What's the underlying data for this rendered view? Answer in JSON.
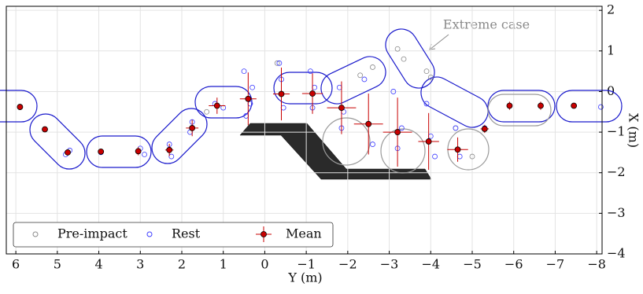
{
  "chart_data": {
    "type": "scatter",
    "xlabel": "Y (m)",
    "ylabel": "X (m)",
    "annotation": "Extreme case",
    "xlim": [
      6.23,
      -8.13
    ],
    "ylim": [
      -4,
      2.1
    ],
    "xticks": [
      6,
      5,
      4,
      3,
      2,
      1,
      0,
      {
        "value": -1,
        "label": "−1"
      },
      {
        "value": -2,
        "label": "−2"
      },
      {
        "value": -3,
        "label": "−3"
      },
      {
        "value": -4,
        "label": "−4"
      },
      {
        "value": -5,
        "label": "−5"
      },
      {
        "value": -6,
        "label": "−6"
      },
      {
        "value": -7,
        "label": "−7"
      },
      {
        "value": -8,
        "label": "−8"
      }
    ],
    "yticks": [
      2,
      1,
      0,
      {
        "value": -1,
        "label": "−1"
      },
      {
        "value": -2,
        "label": "−2"
      },
      {
        "value": -3,
        "label": "−3"
      },
      {
        "value": -4,
        "label": "−4"
      }
    ],
    "grid": true,
    "legend": "lower left",
    "series": [
      {
        "name": "Pre-impact",
        "color": "#8a8a8a",
        "x": [
          -3.2,
          -3.35,
          -3.9,
          -4.0,
          -2.3,
          -2.6,
          -4.6,
          -5.0,
          -0.3,
          1.4
        ],
        "values": [
          1.05,
          0.8,
          0.5,
          0.35,
          0.4,
          0.6,
          -0.9,
          -1.6,
          0.7,
          -0.5
        ]
      },
      {
        "name": "Rest",
        "color": "#3d3dff",
        "x": [
          5.9,
          5.3,
          4.7,
          4.8,
          3.95,
          3.0,
          2.9,
          2.3,
          2.25,
          1.75,
          1.8,
          1.2,
          1.0,
          0.5,
          0.35,
          0.3,
          0.45,
          -0.35,
          -0.4,
          -0.45,
          -1.1,
          -1.2,
          -1.15,
          -1.8,
          -1.9,
          -1.85,
          -2.4,
          -2.5,
          -2.6,
          -3.1,
          -3.3,
          -3.2,
          -3.9,
          -4.0,
          -4.1,
          -4.6,
          -4.7,
          -5.3,
          -5.9,
          -6.65,
          -7.45,
          -8.1
        ],
        "values": [
          -0.38,
          -0.93,
          -1.45,
          -1.55,
          -1.5,
          -1.4,
          -1.55,
          -1.3,
          -1.6,
          -0.75,
          -1.0,
          -0.3,
          -0.4,
          0.5,
          -0.3,
          0.1,
          -0.6,
          0.7,
          0.3,
          -0.4,
          0.5,
          0.1,
          -0.4,
          0.1,
          -0.5,
          -0.9,
          0.3,
          -0.8,
          -1.3,
          0.0,
          -0.9,
          -1.4,
          -0.3,
          -1.1,
          -1.6,
          -0.9,
          -1.6,
          -0.9,
          -0.35,
          -0.35,
          -0.35,
          -0.38
        ]
      },
      {
        "name": "Mean",
        "color": "#c80000",
        "x": [
          5.9,
          5.3,
          4.75,
          3.95,
          3.05,
          2.3,
          1.75,
          1.15,
          0.4,
          -0.4,
          -1.15,
          -1.85,
          -2.5,
          -3.2,
          -3.95,
          -4.65,
          -5.3,
          -5.9,
          -6.65,
          -7.45
        ],
        "values": [
          -0.38,
          -0.93,
          -1.5,
          -1.48,
          -1.47,
          -1.44,
          -0.9,
          -0.35,
          -0.18,
          -0.06,
          -0.05,
          -0.4,
          -0.8,
          -1.0,
          -1.23,
          -1.43,
          -0.92,
          -0.35,
          -0.35,
          -0.35
        ],
        "xerr": [
          0.05,
          0.05,
          0.05,
          0.05,
          0.05,
          0.1,
          0.15,
          0.2,
          0.2,
          0.2,
          0.25,
          0.35,
          0.35,
          0.35,
          0.25,
          0.25,
          0.1,
          0.05,
          0.05,
          0.05
        ],
        "yerr": [
          0.05,
          0.05,
          0.05,
          0.05,
          0.1,
          0.15,
          0.2,
          0.2,
          0.65,
          0.65,
          0.5,
          0.65,
          0.75,
          0.85,
          0.7,
          0.3,
          0.1,
          0.1,
          0.1,
          0.05
        ]
      }
    ]
  }
}
